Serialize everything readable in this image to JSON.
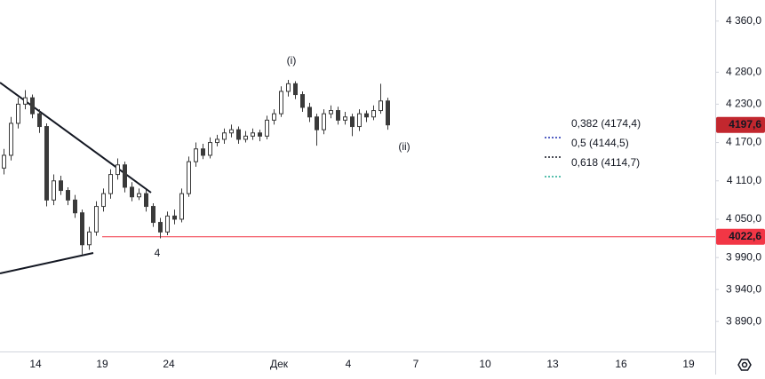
{
  "chart_data": {
    "type": "candlestick",
    "color": "#3a3a3a",
    "open": [
      4130,
      4150,
      4200,
      4230,
      4240,
      4215,
      4195,
      4080,
      4110,
      4095,
      4080,
      4060,
      4010,
      4030,
      4070,
      4090,
      4120,
      4135,
      4100,
      4085,
      4090,
      4070,
      4045,
      4030,
      4055,
      4050,
      4090,
      4140,
      4160,
      4150,
      4170,
      4175,
      4185,
      4190,
      4175,
      4180,
      4185,
      4180,
      4205,
      4215,
      4250,
      4262,
      4245,
      4225,
      4210,
      4190,
      4215,
      4220,
      4205,
      4210,
      4195,
      4215,
      4210,
      4220,
      4235
    ],
    "high": [
      4160,
      4210,
      4240,
      4252,
      4245,
      4222,
      4200,
      4120,
      4118,
      4100,
      4088,
      4065,
      4038,
      4078,
      4098,
      4128,
      4145,
      4140,
      4108,
      4098,
      4096,
      4075,
      4052,
      4062,
      4065,
      4098,
      4148,
      4170,
      4168,
      4178,
      4182,
      4192,
      4198,
      4195,
      4188,
      4192,
      4190,
      4212,
      4222,
      4258,
      4268,
      4266,
      4250,
      4232,
      4215,
      4222,
      4228,
      4226,
      4218,
      4215,
      4222,
      4220,
      4228,
      4262,
      4240
    ],
    "low": [
      4120,
      4142,
      4192,
      4222,
      4208,
      4185,
      4070,
      4072,
      4088,
      4072,
      4052,
      3995,
      4002,
      4024,
      4062,
      4082,
      4112,
      4092,
      4078,
      4080,
      4062,
      4038,
      4020,
      4025,
      4042,
      4045,
      4085,
      4132,
      4144,
      4145,
      4164,
      4168,
      4178,
      4168,
      4170,
      4174,
      4172,
      4175,
      4198,
      4210,
      4242,
      4238,
      4218,
      4202,
      4165,
      4183,
      4208,
      4198,
      4198,
      4180,
      4188,
      4202,
      4205,
      4215,
      4190
    ],
    "close": [
      4150,
      4200,
      4230,
      4240,
      4215,
      4195,
      4080,
      4110,
      4095,
      4080,
      4060,
      4010,
      4030,
      4070,
      4090,
      4120,
      4135,
      4100,
      4085,
      4090,
      4070,
      4045,
      4030,
      4055,
      4050,
      4090,
      4140,
      4160,
      4150,
      4170,
      4175,
      4185,
      4190,
      4175,
      4180,
      4185,
      4180,
      4205,
      4215,
      4250,
      4262,
      4245,
      4225,
      4210,
      4190,
      4215,
      4220,
      4205,
      4210,
      4195,
      4215,
      4210,
      4220,
      4235,
      4197.6
    ],
    "ylim": [
      3843,
      4393
    ],
    "yticks": [
      {
        "value": 3890,
        "label": "3 890,0"
      },
      {
        "value": 3940,
        "label": "3 940,0"
      },
      {
        "value": 3990,
        "label": "3 990,0"
      },
      {
        "value": 4050,
        "label": "4 050,0"
      },
      {
        "value": 4110,
        "label": "4 110,0"
      },
      {
        "value": 4170,
        "label": "4 170,0"
      },
      {
        "value": 4230,
        "label": "4 230,0"
      },
      {
        "value": 4280,
        "label": "4 280,0"
      },
      {
        "value": 4360,
        "label": "4 360,0"
      }
    ],
    "xlabels": [
      "14",
      "19",
      "24",
      "Дек",
      "4",
      "7",
      "10",
      "13",
      "16",
      "19"
    ],
    "price_labels": [
      {
        "value": 4197.6,
        "label": "4197,6",
        "color": "#c2272e"
      },
      {
        "value": 4022.6,
        "label": "4022,6",
        "color": "#f23645"
      }
    ],
    "annotations": [
      "(i)",
      "(ii)",
      "4"
    ],
    "fib_levels": [
      {
        "label": "0,382 (4174,4)",
        "color": "#1e2fb0"
      },
      {
        "label": "0,5 (4144,5)",
        "color": "#131722"
      },
      {
        "label": "0,618 (4114,7)",
        "color": "#22ab94"
      }
    ]
  }
}
